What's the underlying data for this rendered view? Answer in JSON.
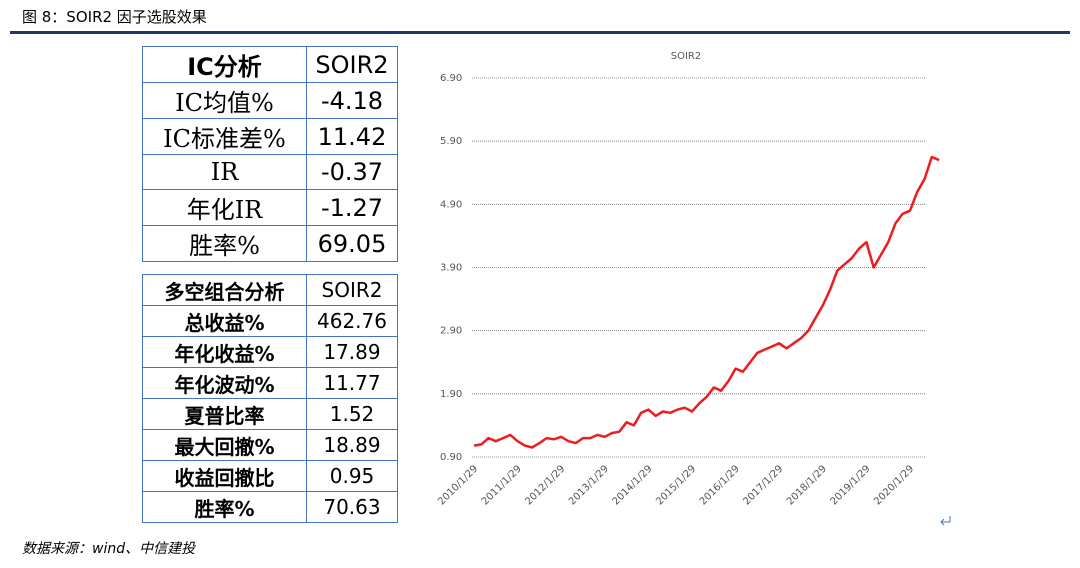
{
  "header": {
    "title": "图 8：SOIR2 因子选股效果"
  },
  "tables": [
    {
      "columns": [
        "IC分析",
        "SOIR2"
      ],
      "rows": [
        [
          "IC均值%",
          "-4.18"
        ],
        [
          "IC标准差%",
          "11.42"
        ],
        [
          "IR",
          "-0.37"
        ],
        [
          "年化IR",
          "-1.27"
        ],
        [
          "胜率%",
          "69.05"
        ]
      ]
    },
    {
      "columns": [
        "多空组合分析",
        "SOIR2"
      ],
      "rows": [
        [
          "总收益%",
          "462.76"
        ],
        [
          "年化收益%",
          "17.89"
        ],
        [
          "年化波动%",
          "11.77"
        ],
        [
          "夏普比率",
          "1.52"
        ],
        [
          "最大回撤%",
          "18.89"
        ],
        [
          "收益回撤比",
          "0.95"
        ],
        [
          "胜率%",
          "70.63"
        ]
      ]
    }
  ],
  "chart_data": {
    "type": "line",
    "title": "SOIR2",
    "color": "#ee1c1c",
    "grid": true,
    "categories": [
      "2010/1/29",
      null,
      null,
      null,
      null,
      null,
      "2011/1/29",
      null,
      null,
      null,
      null,
      null,
      "2012/1/29",
      null,
      null,
      null,
      null,
      null,
      "2013/1/29",
      null,
      null,
      null,
      null,
      null,
      "2014/1/29",
      null,
      null,
      null,
      null,
      null,
      "2015/1/29",
      null,
      null,
      null,
      null,
      null,
      "2016/1/29",
      null,
      null,
      null,
      null,
      null,
      "2017/1/29",
      null,
      null,
      null,
      null,
      null,
      "2018/1/29",
      null,
      null,
      null,
      null,
      null,
      "2019/1/29",
      null,
      null,
      null,
      null,
      null,
      "2020/1/29",
      null,
      null,
      null,
      null
    ],
    "values": [
      1.08,
      1.1,
      1.2,
      1.15,
      1.2,
      1.25,
      1.15,
      1.08,
      1.05,
      1.12,
      1.2,
      1.18,
      1.22,
      1.15,
      1.12,
      1.2,
      1.2,
      1.25,
      1.22,
      1.28,
      1.3,
      1.45,
      1.4,
      1.6,
      1.65,
      1.55,
      1.62,
      1.6,
      1.65,
      1.68,
      1.62,
      1.75,
      1.85,
      2.0,
      1.95,
      2.1,
      2.3,
      2.25,
      2.4,
      2.55,
      2.6,
      2.65,
      2.7,
      2.62,
      2.7,
      2.78,
      2.9,
      3.1,
      3.3,
      3.55,
      3.85,
      3.95,
      4.05,
      4.2,
      4.3,
      3.9,
      4.1,
      4.3,
      4.6,
      4.75,
      4.8,
      5.1,
      5.3,
      5.65,
      5.6
    ],
    "ylim": [
      0.9,
      6.9
    ],
    "yticks": [
      {
        "value": 0.9,
        "label": "0.90"
      },
      {
        "value": 1.9,
        "label": "1.90"
      },
      {
        "value": 2.9,
        "label": "2.90"
      },
      {
        "value": 3.9,
        "label": "3.90"
      },
      {
        "value": 4.9,
        "label": "4.90"
      },
      {
        "value": 5.9,
        "label": "5.90"
      },
      {
        "value": 6.9,
        "label": "6.90"
      }
    ]
  },
  "source": "数据来源：wind、中信建投"
}
